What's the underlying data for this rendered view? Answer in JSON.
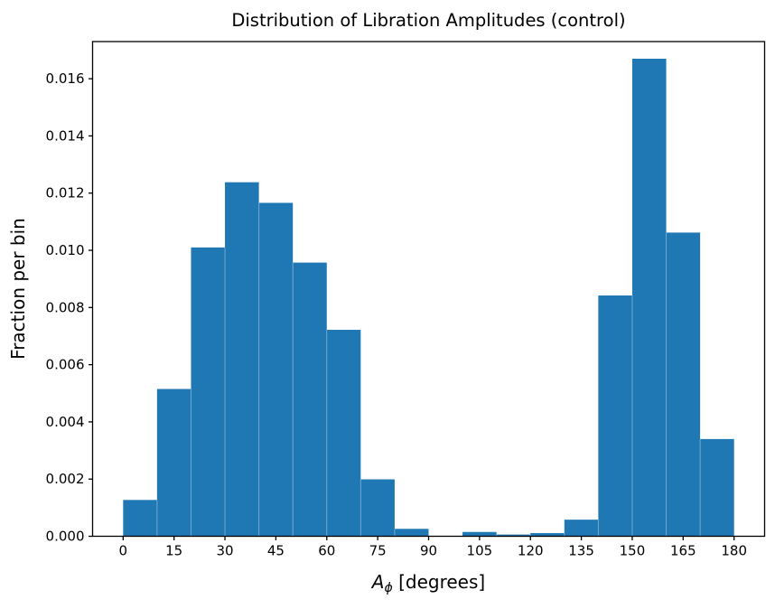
{
  "figure": {
    "background": "#ffffff"
  },
  "chart_data": {
    "type": "bar",
    "subtype": "histogram",
    "title": "Distribution of Libration Amplitudes (control)",
    "ylabel": "Fraction per bin",
    "xlabel_parts": {
      "variable": "A",
      "subscript": "ϕ",
      "units": " [degrees]"
    },
    "bin_edges": [
      0,
      10,
      20,
      30,
      40,
      50,
      60,
      70,
      80,
      90,
      100,
      110,
      120,
      130,
      140,
      150,
      160,
      170,
      180
    ],
    "values": [
      0.00127,
      0.00515,
      0.0101,
      0.01238,
      0.01166,
      0.00957,
      0.00722,
      0.00199,
      0.00026,
      0.0,
      0.00015,
      6e-05,
      0.00011,
      0.00058,
      0.00842,
      0.0167,
      0.01062,
      0.0034
    ],
    "xticks": [
      0,
      15,
      30,
      45,
      60,
      75,
      90,
      105,
      120,
      135,
      150,
      165,
      180
    ],
    "xtick_labels": [
      "0",
      "15",
      "30",
      "45",
      "60",
      "75",
      "90",
      "105",
      "120",
      "135",
      "150",
      "165",
      "180"
    ],
    "yticks": [
      0.0,
      0.002,
      0.004,
      0.006,
      0.008,
      0.01,
      0.012,
      0.014,
      0.016
    ],
    "ytick_labels": [
      "0.000",
      "0.002",
      "0.004",
      "0.006",
      "0.008",
      "0.010",
      "0.012",
      "0.014",
      "0.016"
    ],
    "xlim": [
      -9,
      189
    ],
    "ylim": [
      0,
      0.0173
    ],
    "bar_color": "#1f77b4",
    "bar_seam_color": "#7fb0d6",
    "axis_color": "#000000",
    "grid": "off",
    "legend": "none"
  }
}
